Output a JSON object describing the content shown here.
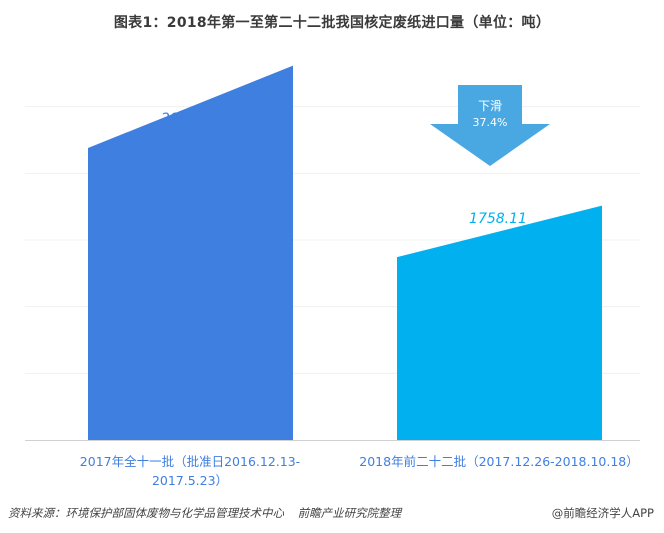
{
  "chart_data": {
    "type": "bar",
    "title": "图表1：2018年第一至第二十二批我国核定废纸进口量（单位：吨）",
    "categories": [
      [
        "2017年全十一批（批准日2016.12.13-",
        "2017.5.23）"
      ],
      [
        "2018年前二十二批（2017.12.26-2018.10.18）"
      ]
    ],
    "values": [
      2807.67,
      1758.11
    ],
    "value_labels": [
      "2807.67",
      "1758.11"
    ],
    "ylim": [
      0,
      3000
    ],
    "grid": true,
    "colors": [
      "#3f7fe0",
      "#00b0ef"
    ],
    "annotation": {
      "line1": "下滑",
      "line2": "37.4%",
      "color": "#49a8e2"
    }
  },
  "source": {
    "label": "资料来源：环境保护部固体废物与化学品管理技术中心",
    "org": "前瞻产业研究院整理"
  },
  "app_mark": "@前瞻经济学人APP"
}
